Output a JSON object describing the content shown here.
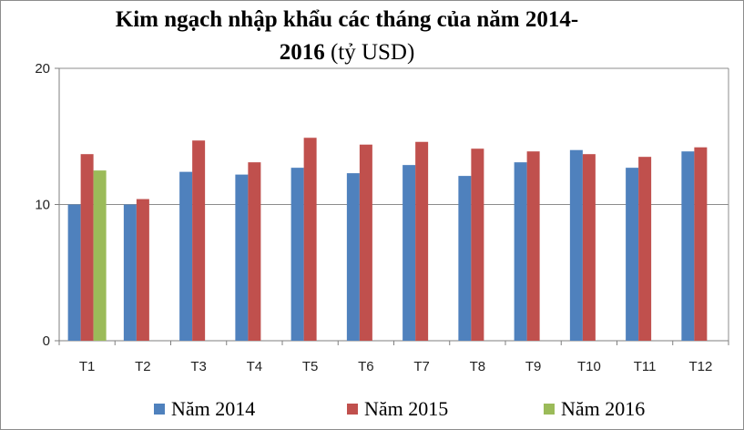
{
  "chart_data": {
    "type": "bar",
    "title_line1": "Kim ngạch nhập khẩu các tháng của năm 2014-",
    "title_line2_bold": "2016",
    "title_line2_rest": " (tỷ USD)",
    "categories": [
      "T1",
      "T2",
      "T3",
      "T4",
      "T5",
      "T6",
      "T7",
      "T8",
      "T9",
      "T10",
      "T11",
      "T12"
    ],
    "series": [
      {
        "name": "Năm 2014",
        "color": "#4f81bd",
        "values": [
          10.0,
          10.0,
          12.4,
          12.2,
          12.7,
          12.3,
          12.9,
          12.1,
          13.1,
          14.0,
          12.7,
          13.9
        ]
      },
      {
        "name": "Năm 2015",
        "color": "#c0504d",
        "values": [
          13.7,
          10.4,
          14.7,
          13.1,
          14.9,
          14.4,
          14.6,
          14.1,
          13.9,
          13.7,
          13.5,
          14.2
        ]
      },
      {
        "name": "Năm 2016",
        "color": "#9bbb59",
        "values": [
          12.5,
          null,
          null,
          null,
          null,
          null,
          null,
          null,
          null,
          null,
          null,
          null
        ]
      }
    ],
    "y_ticks": [
      0,
      10,
      20
    ],
    "ylim": [
      0,
      20
    ],
    "grid": true,
    "legend_position": "bottom"
  }
}
